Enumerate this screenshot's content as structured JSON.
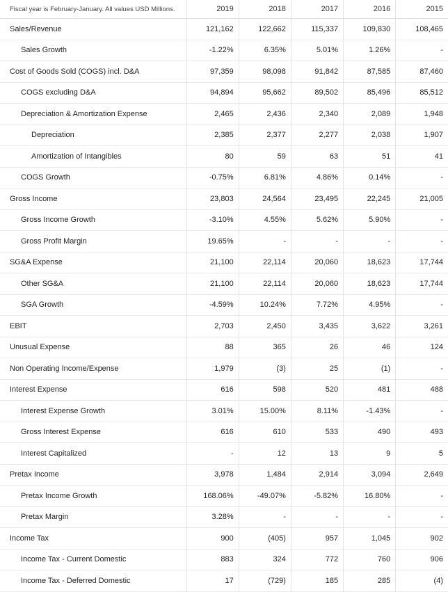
{
  "header": {
    "note": "Fiscal year is February-January. All values USD Millions.",
    "years": [
      "2019",
      "2018",
      "2017",
      "2016",
      "2015"
    ]
  },
  "rows": [
    {
      "label": "Sales/Revenue",
      "indent": 0,
      "values": [
        "121,162",
        "122,662",
        "115,337",
        "109,830",
        "108,465"
      ]
    },
    {
      "label": "Sales Growth",
      "indent": 1,
      "values": [
        "-1.22%",
        "6.35%",
        "5.01%",
        "1.26%",
        "-"
      ]
    },
    {
      "label": "Cost of Goods Sold (COGS) incl. D&A",
      "indent": 0,
      "values": [
        "97,359",
        "98,098",
        "91,842",
        "87,585",
        "87,460"
      ]
    },
    {
      "label": "COGS excluding D&A",
      "indent": 1,
      "values": [
        "94,894",
        "95,662",
        "89,502",
        "85,496",
        "85,512"
      ]
    },
    {
      "label": "Depreciation & Amortization Expense",
      "indent": 1,
      "values": [
        "2,465",
        "2,436",
        "2,340",
        "2,089",
        "1,948"
      ]
    },
    {
      "label": "Depreciation",
      "indent": 2,
      "values": [
        "2,385",
        "2,377",
        "2,277",
        "2,038",
        "1,907"
      ]
    },
    {
      "label": "Amortization of Intangibles",
      "indent": 2,
      "values": [
        "80",
        "59",
        "63",
        "51",
        "41"
      ]
    },
    {
      "label": "COGS Growth",
      "indent": 1,
      "values": [
        "-0.75%",
        "6.81%",
        "4.86%",
        "0.14%",
        "-"
      ]
    },
    {
      "label": "Gross Income",
      "indent": 0,
      "values": [
        "23,803",
        "24,564",
        "23,495",
        "22,245",
        "21,005"
      ]
    },
    {
      "label": "Gross Income Growth",
      "indent": 1,
      "values": [
        "-3.10%",
        "4.55%",
        "5.62%",
        "5.90%",
        "-"
      ]
    },
    {
      "label": "Gross Profit Margin",
      "indent": 1,
      "values": [
        "19.65%",
        "-",
        "-",
        "-",
        "-"
      ]
    },
    {
      "label": "SG&A Expense",
      "indent": 0,
      "values": [
        "21,100",
        "22,114",
        "20,060",
        "18,623",
        "17,744"
      ]
    },
    {
      "label": "Other SG&A",
      "indent": 1,
      "values": [
        "21,100",
        "22,114",
        "20,060",
        "18,623",
        "17,744"
      ]
    },
    {
      "label": "SGA Growth",
      "indent": 1,
      "values": [
        "-4.59%",
        "10.24%",
        "7.72%",
        "4.95%",
        "-"
      ]
    },
    {
      "label": "EBIT",
      "indent": 0,
      "values": [
        "2,703",
        "2,450",
        "3,435",
        "3,622",
        "3,261"
      ]
    },
    {
      "label": "Unusual Expense",
      "indent": 0,
      "values": [
        "88",
        "365",
        "26",
        "46",
        "124"
      ]
    },
    {
      "label": "Non Operating Income/Expense",
      "indent": 0,
      "values": [
        "1,979",
        "(3)",
        "25",
        "(1)",
        "-"
      ]
    },
    {
      "label": "Interest Expense",
      "indent": 0,
      "values": [
        "616",
        "598",
        "520",
        "481",
        "488"
      ]
    },
    {
      "label": "Interest Expense Growth",
      "indent": 1,
      "values": [
        "3.01%",
        "15.00%",
        "8.11%",
        "-1.43%",
        "-"
      ]
    },
    {
      "label": "Gross Interest Expense",
      "indent": 1,
      "values": [
        "616",
        "610",
        "533",
        "490",
        "493"
      ]
    },
    {
      "label": "Interest Capitalized",
      "indent": 1,
      "values": [
        "-",
        "12",
        "13",
        "9",
        "5"
      ]
    },
    {
      "label": "Pretax Income",
      "indent": 0,
      "values": [
        "3,978",
        "1,484",
        "2,914",
        "3,094",
        "2,649"
      ]
    },
    {
      "label": "Pretax Income Growth",
      "indent": 1,
      "values": [
        "168.06%",
        "-49.07%",
        "-5.82%",
        "16.80%",
        "-"
      ]
    },
    {
      "label": "Pretax Margin",
      "indent": 1,
      "values": [
        "3.28%",
        "-",
        "-",
        "-",
        "-"
      ]
    },
    {
      "label": "Income Tax",
      "indent": 0,
      "values": [
        "900",
        "(405)",
        "957",
        "1,045",
        "902"
      ]
    },
    {
      "label": "Income Tax - Current Domestic",
      "indent": 1,
      "values": [
        "883",
        "324",
        "772",
        "760",
        "906"
      ]
    },
    {
      "label": "Income Tax - Deferred Domestic",
      "indent": 1,
      "values": [
        "17",
        "(729)",
        "185",
        "285",
        "(4)"
      ]
    }
  ],
  "colors": {
    "positive": "#2e8b2e",
    "negative": "#e0182a",
    "text": "#222222",
    "grid": "#e8e8e8"
  }
}
